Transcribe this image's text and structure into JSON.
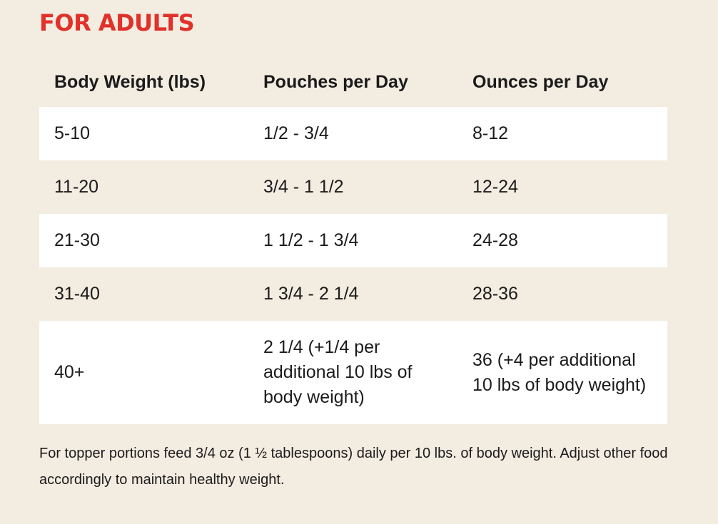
{
  "heading": "FOR ADULTS",
  "table": {
    "headers": [
      "Body Weight (lbs)",
      "Pouches per Day",
      "Ounces per Day"
    ],
    "rows": [
      [
        "5-10",
        "1/2 - 3/4",
        "8-12"
      ],
      [
        "11-20",
        "3/4 - 1 1/2",
        "12-24"
      ],
      [
        "21-30",
        "1 1/2 - 1 3/4",
        "24-28"
      ],
      [
        "31-40",
        "1 3/4 - 2 1/4",
        "28-36"
      ],
      [
        "40+",
        "2 1/4 (+1/4 per additional 10 lbs of body weight)",
        "36 (+4 per additional 10 lbs of body weight)"
      ]
    ]
  },
  "footnote": "For topper portions feed 3/4 oz (1 ½ tablespoons) daily per 10 lbs. of body weight. Adjust other food accordingly to maintain healthy weight.",
  "colors": {
    "background": "#f3ece1",
    "heading": "#e0312a",
    "row_highlight": "#ffffff",
    "text": "#1b1b1b"
  }
}
